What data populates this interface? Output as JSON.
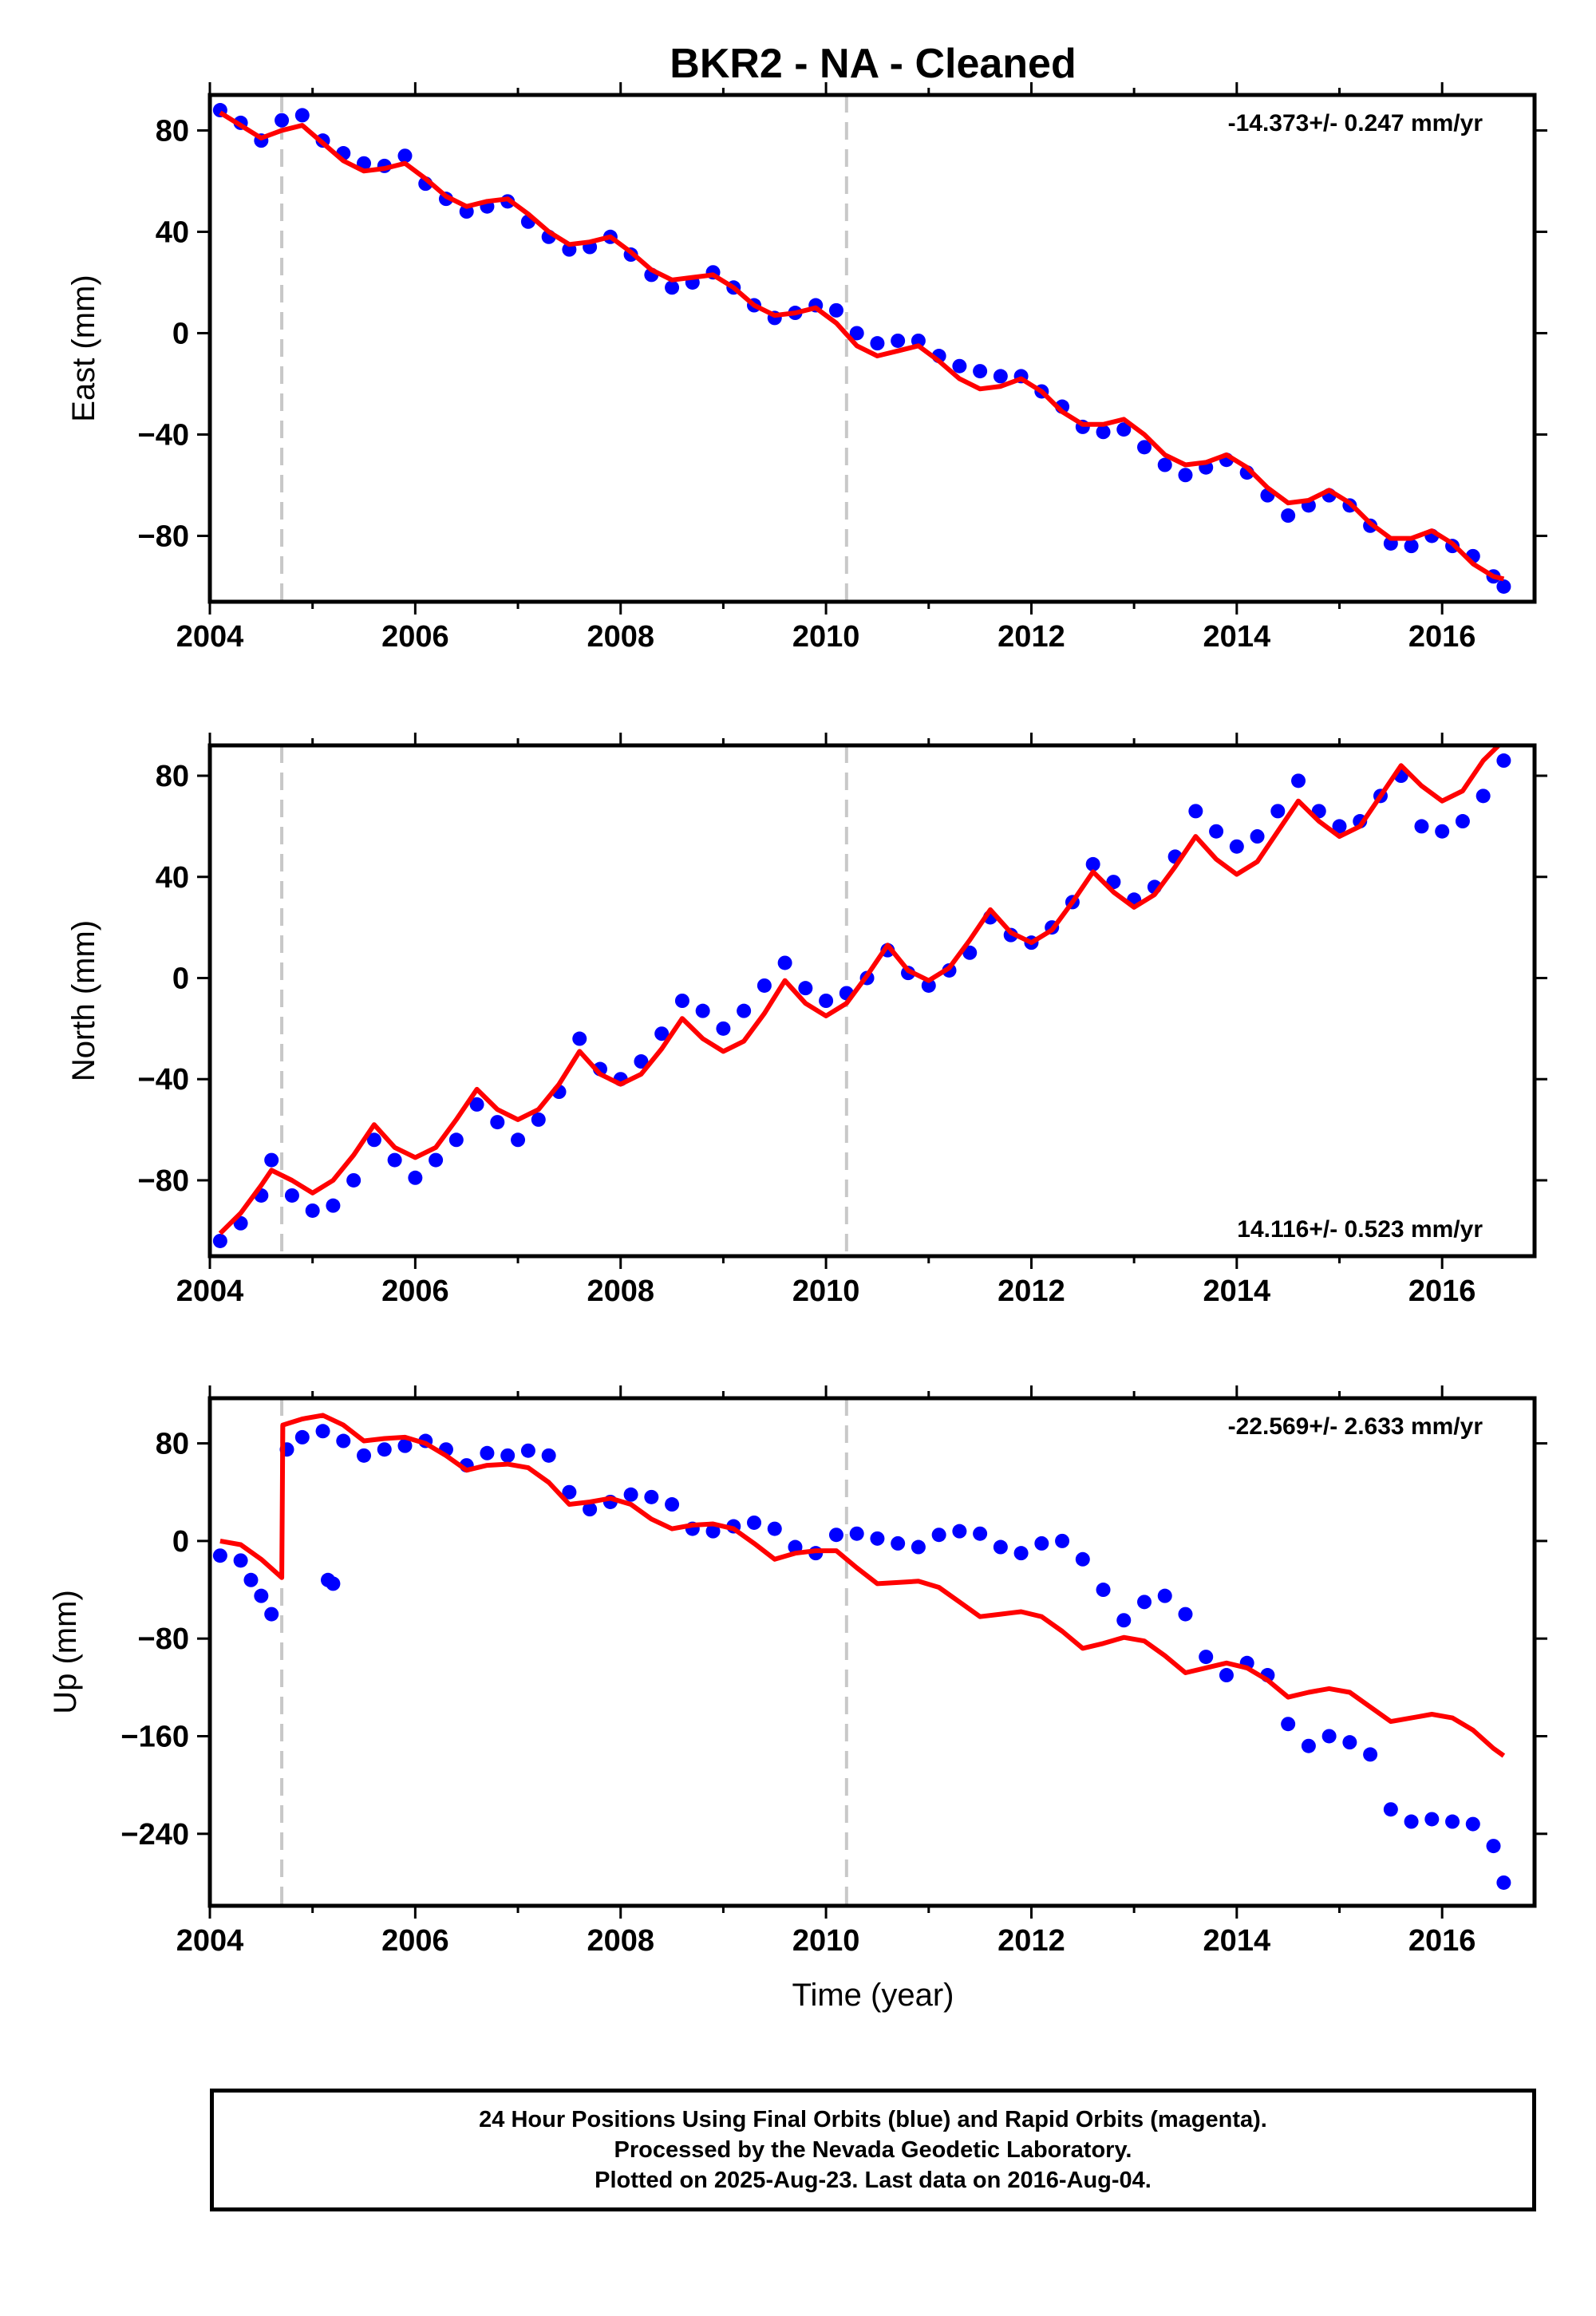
{
  "title": "BKR2  - NA - Cleaned",
  "colors": {
    "observed": "#0000ff",
    "model": "#ff0000",
    "offset_lines": "#c8c8c8",
    "frame": "#000000"
  },
  "chart_data": [
    {
      "type": "scatter",
      "component": "East",
      "ylabel": "East (mm)",
      "xlabel": "",
      "xlim": [
        2004,
        2016.9
      ],
      "ylim": [
        -106,
        94
      ],
      "xticks": [
        2004,
        2006,
        2008,
        2010,
        2012,
        2014,
        2016
      ],
      "yticks": [
        80,
        40,
        0,
        -40,
        -80
      ],
      "rate_label": "-14.373+/- 0.247 mm/yr",
      "rate_position": "top-right",
      "offset_epochs": [
        2004.7,
        2010.2
      ],
      "series": [
        {
          "role": "observed",
          "x": [
            2004.1,
            2004.3,
            2004.5,
            2004.7,
            2004.9,
            2005.1,
            2005.3,
            2005.5,
            2005.7,
            2005.9,
            2006.1,
            2006.3,
            2006.5,
            2006.7,
            2006.9,
            2007.1,
            2007.3,
            2007.5,
            2007.7,
            2007.9,
            2008.1,
            2008.3,
            2008.5,
            2008.7,
            2008.9,
            2009.1,
            2009.3,
            2009.5,
            2009.7,
            2009.9,
            2010.1,
            2010.3,
            2010.5,
            2010.7,
            2010.9,
            2011.1,
            2011.3,
            2011.5,
            2011.7,
            2011.9,
            2012.1,
            2012.3,
            2012.5,
            2012.7,
            2012.9,
            2013.1,
            2013.3,
            2013.5,
            2013.7,
            2013.9,
            2014.1,
            2014.3,
            2014.5,
            2014.7,
            2014.9,
            2015.1,
            2015.3,
            2015.5,
            2015.7,
            2015.9,
            2016.1,
            2016.3,
            2016.5,
            2016.6
          ],
          "y": [
            88,
            83,
            76,
            84,
            86,
            76,
            71,
            67,
            66,
            70,
            59,
            53,
            48,
            50,
            52,
            44,
            38,
            33,
            34,
            38,
            31,
            23,
            18,
            20,
            24,
            18,
            11,
            6,
            8,
            11,
            9,
            0,
            -4,
            -3,
            -3,
            -9,
            -13,
            -15,
            -17,
            -17,
            -23,
            -29,
            -37,
            -39,
            -38,
            -45,
            -52,
            -56,
            -53,
            -50,
            -55,
            -64,
            -72,
            -68,
            -64,
            -68,
            -76,
            -83,
            -84,
            -80,
            -84,
            -88,
            -96,
            -100
          ]
        },
        {
          "role": "model",
          "x": [
            2004.1,
            2004.3,
            2004.5,
            2004.7,
            2004.9,
            2005.1,
            2005.3,
            2005.5,
            2005.7,
            2005.9,
            2006.1,
            2006.3,
            2006.5,
            2006.7,
            2006.9,
            2007.1,
            2007.3,
            2007.5,
            2007.7,
            2007.9,
            2008.1,
            2008.3,
            2008.5,
            2008.7,
            2008.9,
            2009.1,
            2009.3,
            2009.5,
            2009.7,
            2009.9,
            2010.1,
            2010.3,
            2010.5,
            2010.7,
            2010.9,
            2011.1,
            2011.3,
            2011.5,
            2011.7,
            2011.9,
            2012.1,
            2012.3,
            2012.5,
            2012.7,
            2012.9,
            2013.1,
            2013.3,
            2013.5,
            2013.7,
            2013.9,
            2014.1,
            2014.3,
            2014.5,
            2014.7,
            2014.9,
            2015.1,
            2015.3,
            2015.5,
            2015.7,
            2015.9,
            2016.1,
            2016.3,
            2016.5,
            2016.6
          ],
          "y": [
            87,
            82,
            77,
            80,
            82,
            75,
            68,
            64,
            65,
            67,
            61,
            54,
            50,
            52,
            53,
            47,
            40,
            35,
            36,
            38,
            32,
            25,
            21,
            22,
            23,
            18,
            11,
            7,
            8,
            10,
            4,
            -5,
            -9,
            -7,
            -5,
            -11,
            -18,
            -22,
            -21,
            -18,
            -23,
            -31,
            -36,
            -36,
            -34,
            -40,
            -48,
            -52,
            -51,
            -48,
            -53,
            -61,
            -67,
            -66,
            -62,
            -67,
            -75,
            -81,
            -81,
            -78,
            -83,
            -91,
            -96,
            -97
          ]
        }
      ]
    },
    {
      "type": "scatter",
      "component": "North",
      "ylabel": "North (mm)",
      "xlabel": "",
      "xlim": [
        2004,
        2016.9
      ],
      "ylim": [
        -110,
        92
      ],
      "xticks": [
        2004,
        2006,
        2008,
        2010,
        2012,
        2014,
        2016
      ],
      "yticks": [
        80,
        40,
        0,
        -40,
        -80
      ],
      "rate_label": "14.116+/- 0.523 mm/yr",
      "rate_position": "bottom-right",
      "offset_epochs": [
        2004.7,
        2010.2
      ],
      "series": [
        {
          "role": "observed",
          "x": [
            2004.1,
            2004.3,
            2004.5,
            2004.6,
            2004.8,
            2005.0,
            2005.2,
            2005.4,
            2005.6,
            2005.8,
            2006.0,
            2006.2,
            2006.4,
            2006.6,
            2006.8,
            2007.0,
            2007.2,
            2007.4,
            2007.6,
            2007.8,
            2008.0,
            2008.2,
            2008.4,
            2008.6,
            2008.8,
            2009.0,
            2009.2,
            2009.4,
            2009.6,
            2009.8,
            2010.0,
            2010.2,
            2010.4,
            2010.6,
            2010.8,
            2011.0,
            2011.2,
            2011.4,
            2011.6,
            2011.8,
            2012.0,
            2012.2,
            2012.4,
            2012.6,
            2012.8,
            2013.0,
            2013.2,
            2013.4,
            2013.6,
            2013.8,
            2014.0,
            2014.2,
            2014.4,
            2014.6,
            2014.8,
            2015.0,
            2015.2,
            2015.4,
            2015.6,
            2015.8,
            2016.0,
            2016.2,
            2016.4,
            2016.6
          ],
          "y": [
            -104,
            -97,
            -86,
            -72,
            -86,
            -92,
            -90,
            -80,
            -64,
            -72,
            -79,
            -72,
            -64,
            -50,
            -57,
            -64,
            -56,
            -45,
            -24,
            -36,
            -40,
            -33,
            -22,
            -9,
            -13,
            -20,
            -13,
            -3,
            6,
            -4,
            -9,
            -6,
            0,
            11,
            2,
            -3,
            3,
            10,
            24,
            17,
            14,
            20,
            30,
            45,
            38,
            31,
            36,
            48,
            66,
            58,
            52,
            56,
            66,
            78,
            66,
            60,
            62,
            72,
            80,
            60,
            58,
            62,
            72,
            86
          ]
        },
        {
          "role": "model",
          "x": [
            2004.1,
            2004.3,
            2004.5,
            2004.6,
            2004.8,
            2005.0,
            2005.2,
            2005.4,
            2005.6,
            2005.8,
            2006.0,
            2006.2,
            2006.4,
            2006.6,
            2006.8,
            2007.0,
            2007.2,
            2007.4,
            2007.6,
            2007.8,
            2008.0,
            2008.2,
            2008.4,
            2008.6,
            2008.8,
            2009.0,
            2009.2,
            2009.4,
            2009.6,
            2009.8,
            2010.0,
            2010.2,
            2010.4,
            2010.6,
            2010.8,
            2011.0,
            2011.2,
            2011.4,
            2011.6,
            2011.8,
            2012.0,
            2012.2,
            2012.4,
            2012.6,
            2012.8,
            2013.0,
            2013.2,
            2013.4,
            2013.6,
            2013.8,
            2014.0,
            2014.2,
            2014.4,
            2014.6,
            2014.8,
            2015.0,
            2015.2,
            2015.4,
            2015.6,
            2015.8,
            2016.0,
            2016.2,
            2016.4,
            2016.6
          ],
          "y": [
            -101,
            -93,
            -82,
            -76,
            -80,
            -85,
            -80,
            -70,
            -58,
            -67,
            -71,
            -67,
            -56,
            -44,
            -52,
            -56,
            -52,
            -42,
            -29,
            -38,
            -42,
            -38,
            -28,
            -16,
            -24,
            -29,
            -25,
            -14,
            -1,
            -10,
            -15,
            -10,
            1,
            13,
            3,
            -1,
            4,
            15,
            27,
            18,
            14,
            19,
            30,
            42,
            34,
            28,
            33,
            44,
            56,
            47,
            41,
            46,
            58,
            70,
            62,
            56,
            60,
            72,
            84,
            76,
            70,
            74,
            86,
            94
          ]
        }
      ]
    },
    {
      "type": "scatter",
      "component": "Up",
      "ylabel": "Up (mm)",
      "xlabel": "Time (year)",
      "xlim": [
        2004,
        2016.9
      ],
      "ylim": [
        -299,
        117
      ],
      "xticks": [
        2004,
        2006,
        2008,
        2010,
        2012,
        2014,
        2016
      ],
      "yticks": [
        80,
        0,
        -80,
        -160,
        -240
      ],
      "rate_label": "-22.569+/- 2.633 mm/yr",
      "rate_position": "top-right",
      "offset_epochs": [
        2004.7,
        2010.2
      ],
      "series": [
        {
          "role": "observed",
          "x": [
            2004.1,
            2004.3,
            2004.4,
            2004.5,
            2004.6,
            2004.75,
            2004.9,
            2005.1,
            2005.3,
            2005.5,
            2005.7,
            2005.9,
            2006.1,
            2006.3,
            2006.5,
            2006.7,
            2006.9,
            2007.1,
            2007.3,
            2007.5,
            2007.7,
            2007.9,
            2008.1,
            2008.3,
            2008.5,
            2008.7,
            2008.9,
            2009.1,
            2009.3,
            2009.5,
            2009.7,
            2009.9,
            2010.1,
            2010.3,
            2010.5,
            2010.7,
            2010.9,
            2011.1,
            2011.3,
            2011.5,
            2011.7,
            2011.9,
            2012.1,
            2012.3,
            2012.5,
            2012.7,
            2012.9,
            2013.1,
            2013.3,
            2013.5,
            2013.7,
            2013.9,
            2014.1,
            2014.3,
            2014.5,
            2014.7,
            2014.9,
            2015.1,
            2015.3,
            2015.5,
            2015.7,
            2015.9,
            2016.1,
            2016.3,
            2016.5,
            2016.6
          ],
          "y": [
            -12,
            -16,
            -32,
            -45,
            -60,
            75,
            85,
            90,
            82,
            70,
            75,
            78,
            82,
            75,
            62,
            72,
            70,
            74,
            70,
            40,
            26,
            32,
            38,
            36,
            30,
            10,
            8,
            12,
            15,
            10,
            -5,
            -10,
            5,
            6,
            2,
            -2,
            -5,
            5,
            8,
            6,
            -5,
            -10,
            -2,
            0,
            -15,
            -40,
            -65,
            -50,
            -45,
            -60,
            -95,
            -110,
            -100,
            -110,
            -150,
            -168,
            -160,
            -165,
            -175,
            -220,
            -230,
            -228,
            -230,
            -232,
            -250,
            -280
          ]
        },
        {
          "role": "observed",
          "x": [
            2005.15,
            2005.2
          ],
          "y": [
            -32,
            -35
          ]
        },
        {
          "role": "model",
          "x": [
            2004.1,
            2004.3,
            2004.5,
            2004.7,
            2004.71,
            2004.9,
            2005.1,
            2005.3,
            2005.5,
            2005.7,
            2005.9,
            2006.1,
            2006.3,
            2006.5,
            2006.7,
            2006.9,
            2007.1,
            2007.3,
            2007.5,
            2007.7,
            2007.9,
            2008.1,
            2008.3,
            2008.5,
            2008.7,
            2008.9,
            2009.1,
            2009.3,
            2009.5,
            2009.7,
            2009.9,
            2010.1,
            2010.3,
            2010.5,
            2010.7,
            2010.9,
            2011.1,
            2011.3,
            2011.5,
            2011.7,
            2011.9,
            2012.1,
            2012.3,
            2012.5,
            2012.7,
            2012.9,
            2013.1,
            2013.3,
            2013.5,
            2013.7,
            2013.9,
            2014.1,
            2014.3,
            2014.5,
            2014.7,
            2014.9,
            2015.1,
            2015.3,
            2015.5,
            2015.7,
            2015.9,
            2016.1,
            2016.3,
            2016.5,
            2016.6
          ],
          "y": [
            0,
            -3,
            -15,
            -30,
            95,
            100,
            103,
            95,
            82,
            84,
            85,
            80,
            70,
            58,
            62,
            63,
            60,
            48,
            30,
            32,
            35,
            30,
            18,
            10,
            13,
            14,
            10,
            -2,
            -15,
            -10,
            -8,
            -8,
            -22,
            -35,
            -34,
            -33,
            -38,
            -50,
            -62,
            -60,
            -58,
            -62,
            -74,
            -88,
            -84,
            -79,
            -82,
            -94,
            -108,
            -104,
            -100,
            -104,
            -114,
            -128,
            -124,
            -121,
            -124,
            -136,
            -148,
            -145,
            -142,
            -145,
            -155,
            -170,
            -176
          ]
        }
      ]
    }
  ],
  "caption": [
    "24 Hour Positions Using Final Orbits (blue) and Rapid Orbits (magenta).",
    "Processed by the Nevada Geodetic Laboratory.",
    "Plotted on 2025-Aug-23. Last data on 2016-Aug-04."
  ]
}
